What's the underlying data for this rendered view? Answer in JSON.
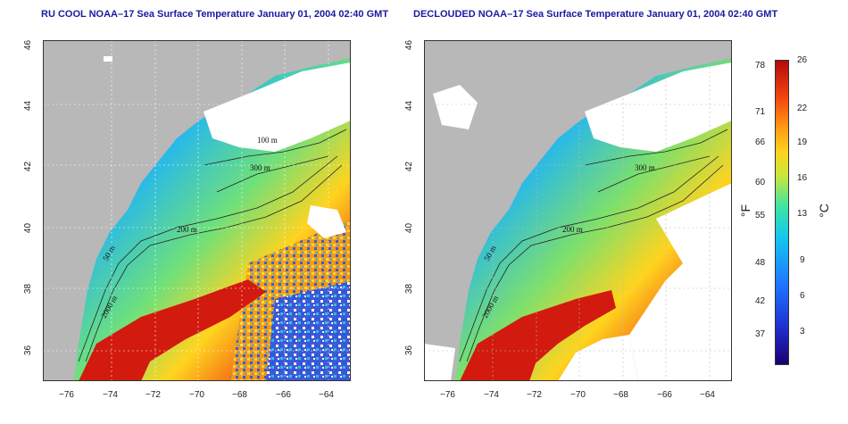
{
  "panels": [
    {
      "title": "RU COOL NOAA–17 Sea Surface Temperature January 01, 2004 02:40 GMT"
    },
    {
      "title": "DECLOUDED NOAA–17 Sea Surface Temperature January 01, 2004 02:40 GMT"
    }
  ],
  "axes": {
    "lon_ticks": [
      "−76",
      "−74",
      "−72",
      "−70",
      "−68",
      "−66",
      "−64"
    ],
    "lat_ticks": [
      "46",
      "44",
      "42",
      "40",
      "38",
      "36"
    ]
  },
  "contours": {
    "labels": [
      "100 m",
      "300 m",
      "50 m",
      "200 m",
      "2000 m"
    ]
  },
  "colorbar": {
    "fahrenheit_ticks": [
      "78",
      "71",
      "66",
      "60",
      "55",
      "48",
      "42",
      "37"
    ],
    "celsius_ticks": [
      "26",
      "22",
      "19",
      "16",
      "13",
      "9",
      "6",
      "3"
    ],
    "fahrenheit_unit": "°F",
    "celsius_unit": "°C"
  },
  "colors": {
    "land": "#b8b8b8",
    "cloud": "#ffffff",
    "cold": "#1f3fe0",
    "warm": "#e42a12",
    "title": "#1a1aa0"
  }
}
